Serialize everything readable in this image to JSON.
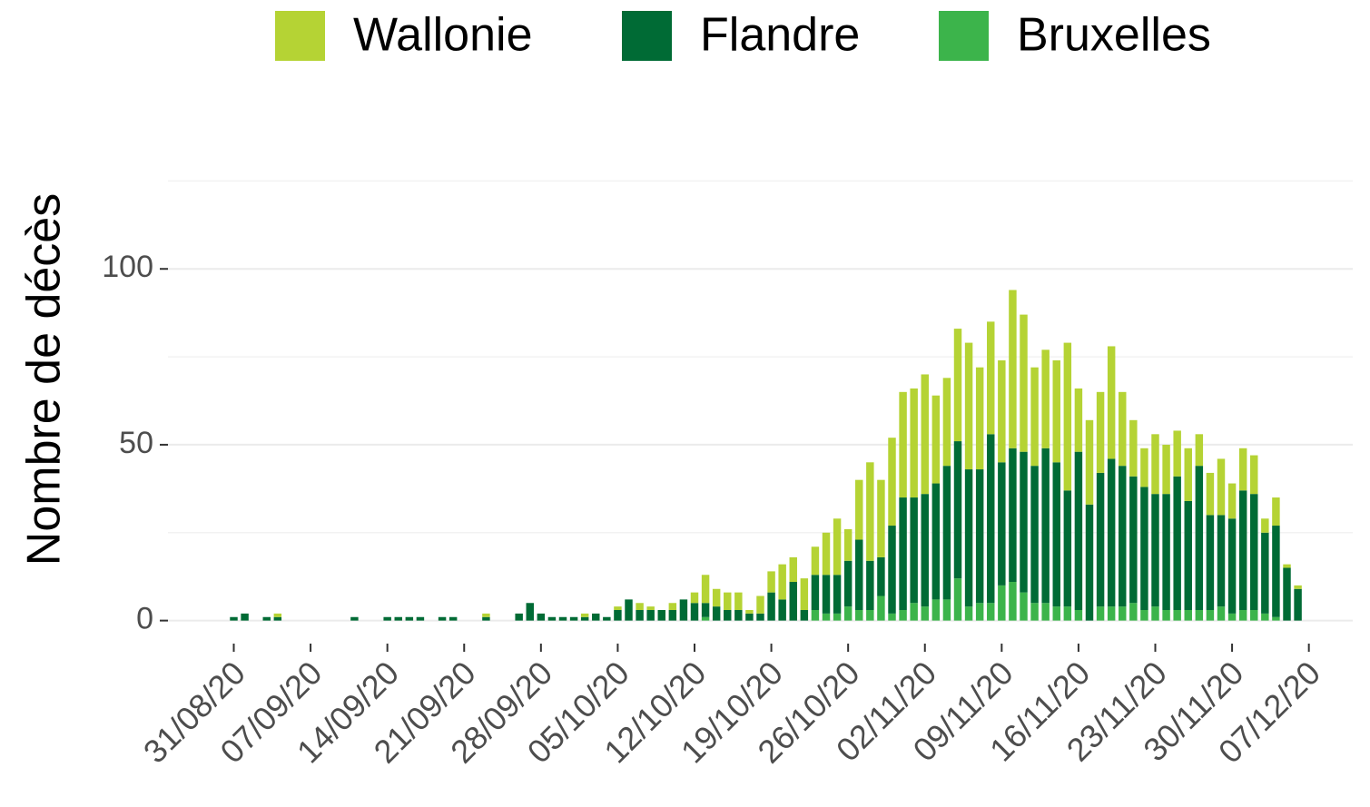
{
  "chart_data": {
    "type": "stacked_bar",
    "ylabel": "Nombre de décès",
    "x": [
      "31/08/20",
      "01/09/20",
      "02/09/20",
      "03/09/20",
      "04/09/20",
      "05/09/20",
      "06/09/20",
      "07/09/20",
      "08/09/20",
      "09/09/20",
      "10/09/20",
      "11/09/20",
      "12/09/20",
      "13/09/20",
      "14/09/20",
      "15/09/20",
      "16/09/20",
      "17/09/20",
      "18/09/20",
      "19/09/20",
      "20/09/20",
      "21/09/20",
      "22/09/20",
      "23/09/20",
      "24/09/20",
      "25/09/20",
      "26/09/20",
      "27/09/20",
      "28/09/20",
      "29/09/20",
      "30/09/20",
      "01/10/20",
      "02/10/20",
      "03/10/20",
      "04/10/20",
      "05/10/20",
      "06/10/20",
      "07/10/20",
      "08/10/20",
      "09/10/20",
      "10/10/20",
      "11/10/20",
      "12/10/20",
      "13/10/20",
      "14/10/20",
      "15/10/20",
      "16/10/20",
      "17/10/20",
      "18/10/20",
      "19/10/20",
      "20/10/20",
      "21/10/20",
      "22/10/20",
      "23/10/20",
      "24/10/20",
      "25/10/20",
      "26/10/20",
      "27/10/20",
      "28/10/20",
      "29/10/20",
      "30/10/20",
      "31/10/20",
      "01/11/20",
      "02/11/20",
      "03/11/20",
      "04/11/20",
      "05/11/20",
      "06/11/20",
      "07/11/20",
      "08/11/20",
      "09/11/20",
      "10/11/20",
      "11/11/20",
      "12/11/20",
      "13/11/20",
      "14/11/20",
      "15/11/20",
      "16/11/20",
      "17/11/20",
      "18/11/20",
      "19/11/20",
      "20/11/20",
      "21/11/20",
      "22/11/20",
      "23/11/20",
      "24/11/20",
      "25/11/20",
      "26/11/20",
      "27/11/20",
      "28/11/20",
      "29/11/20",
      "30/11/20",
      "01/12/20",
      "02/12/20",
      "03/12/20",
      "04/12/20",
      "05/12/20",
      "06/12/20"
    ],
    "series": [
      {
        "name": "Wallonie",
        "color": "#b5d334",
        "values": [
          0,
          0,
          0,
          0,
          1,
          0,
          0,
          0,
          0,
          0,
          0,
          0,
          0,
          0,
          0,
          0,
          0,
          0,
          0,
          0,
          0,
          0,
          0,
          1,
          0,
          0,
          0,
          0,
          0,
          0,
          0,
          0,
          1,
          0,
          0,
          1,
          0,
          2,
          1,
          0,
          2,
          0,
          3,
          8,
          5,
          5,
          5,
          1,
          5,
          6,
          10,
          7,
          9,
          8,
          12,
          16,
          9,
          17,
          28,
          22,
          25,
          30,
          31,
          34,
          25,
          25,
          32,
          36,
          29,
          32,
          29,
          45,
          39,
          28,
          28,
          29,
          42,
          18,
          24,
          23,
          32,
          21,
          16,
          11,
          17,
          14,
          13,
          15,
          9,
          12,
          16,
          10,
          12,
          11,
          4,
          8,
          1,
          1
        ]
      },
      {
        "name": "Flandre",
        "color": "#006b35",
        "values": [
          1,
          2,
          0,
          1,
          1,
          0,
          0,
          0,
          0,
          0,
          0,
          1,
          0,
          0,
          1,
          1,
          1,
          1,
          0,
          1,
          1,
          0,
          0,
          1,
          0,
          0,
          2,
          5,
          2,
          1,
          1,
          1,
          1,
          2,
          1,
          3,
          6,
          3,
          3,
          3,
          3,
          6,
          5,
          4,
          4,
          3,
          3,
          2,
          2,
          8,
          6,
          11,
          3,
          10,
          11,
          11,
          13,
          20,
          14,
          11,
          25,
          32,
          30,
          32,
          33,
          38,
          39,
          39,
          38,
          48,
          35,
          38,
          40,
          39,
          44,
          41,
          33,
          45,
          33,
          38,
          42,
          40,
          36,
          35,
          32,
          33,
          38,
          31,
          41,
          27,
          26,
          27,
          34,
          33,
          23,
          26,
          15,
          9
        ]
      },
      {
        "name": "Bruxelles",
        "color": "#3cb44b",
        "values": [
          0,
          0,
          0,
          0,
          0,
          0,
          0,
          0,
          0,
          0,
          0,
          0,
          0,
          0,
          0,
          0,
          0,
          0,
          0,
          0,
          0,
          0,
          0,
          0,
          0,
          0,
          0,
          0,
          0,
          0,
          0,
          0,
          0,
          0,
          0,
          0,
          0,
          0,
          0,
          0,
          0,
          0,
          0,
          1,
          0,
          0,
          0,
          0,
          0,
          0,
          0,
          0,
          0,
          3,
          2,
          2,
          4,
          3,
          3,
          7,
          2,
          3,
          5,
          4,
          6,
          6,
          12,
          4,
          5,
          5,
          10,
          11,
          8,
          5,
          5,
          4,
          4,
          3,
          0,
          4,
          4,
          4,
          5,
          3,
          4,
          3,
          3,
          3,
          3,
          3,
          4,
          2,
          3,
          3,
          2,
          1,
          0,
          0
        ]
      }
    ],
    "xlim": [
      "25/08/20",
      "11/12/20"
    ],
    "xticks": [
      "31/08/20",
      "07/09/20",
      "14/09/20",
      "21/09/20",
      "28/09/20",
      "05/10/20",
      "12/10/20",
      "19/10/20",
      "26/10/20",
      "02/11/20",
      "09/11/20",
      "16/11/20",
      "23/11/20",
      "30/11/20",
      "07/12/20"
    ],
    "ylim": [
      -5,
      130
    ],
    "yticks": [
      0,
      50,
      100
    ],
    "yminor": [
      25,
      75,
      125
    ],
    "grid": true,
    "legend": "top"
  }
}
